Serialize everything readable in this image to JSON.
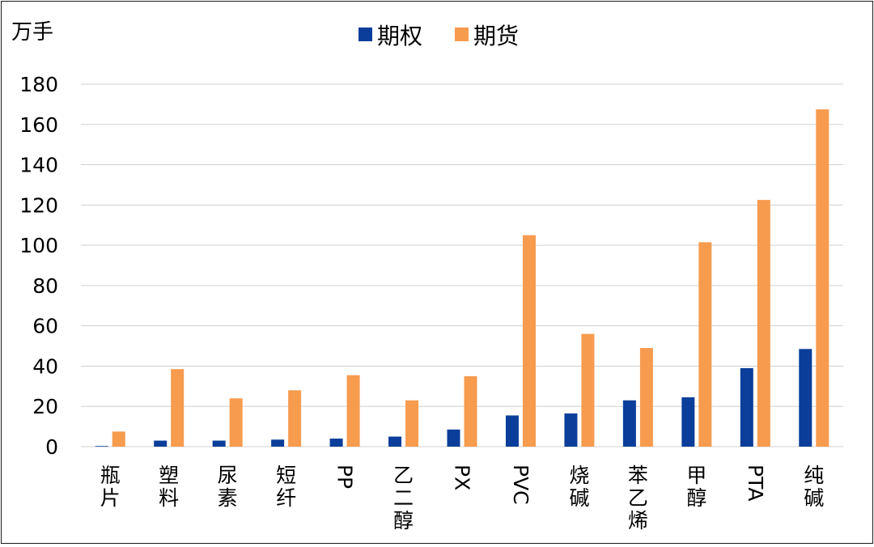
{
  "chart_data": {
    "type": "bar",
    "unit_label": "万手",
    "categories": [
      "瓶片",
      "塑料",
      "尿素",
      "短纤",
      "PP",
      "乙二醇",
      "PX",
      "PVC",
      "烧碱",
      "苯乙烯",
      "甲醇",
      "PTA",
      "纯碱"
    ],
    "category_orientation": [
      "vertical",
      "vertical",
      "vertical",
      "vertical",
      "rotated",
      "vertical",
      "rotated",
      "rotated",
      "vertical",
      "vertical",
      "vertical",
      "rotated",
      "vertical"
    ],
    "series": [
      {
        "name": "期权",
        "color": "#0b3e9a",
        "values": [
          0.3,
          3,
          3,
          3.5,
          4,
          5,
          8.5,
          15.5,
          16.5,
          23,
          24.5,
          39,
          48.5
        ]
      },
      {
        "name": "期货",
        "color": "#f79b4e",
        "values": [
          7.5,
          38.5,
          24,
          28,
          35.5,
          23,
          35,
          105,
          56,
          49,
          101.5,
          122.5,
          167.5
        ]
      }
    ],
    "ylim": [
      0,
      180
    ],
    "yticks": [
      0,
      20,
      40,
      60,
      80,
      100,
      120,
      140,
      160,
      180
    ],
    "grid": true,
    "legend_position": "top-center"
  }
}
